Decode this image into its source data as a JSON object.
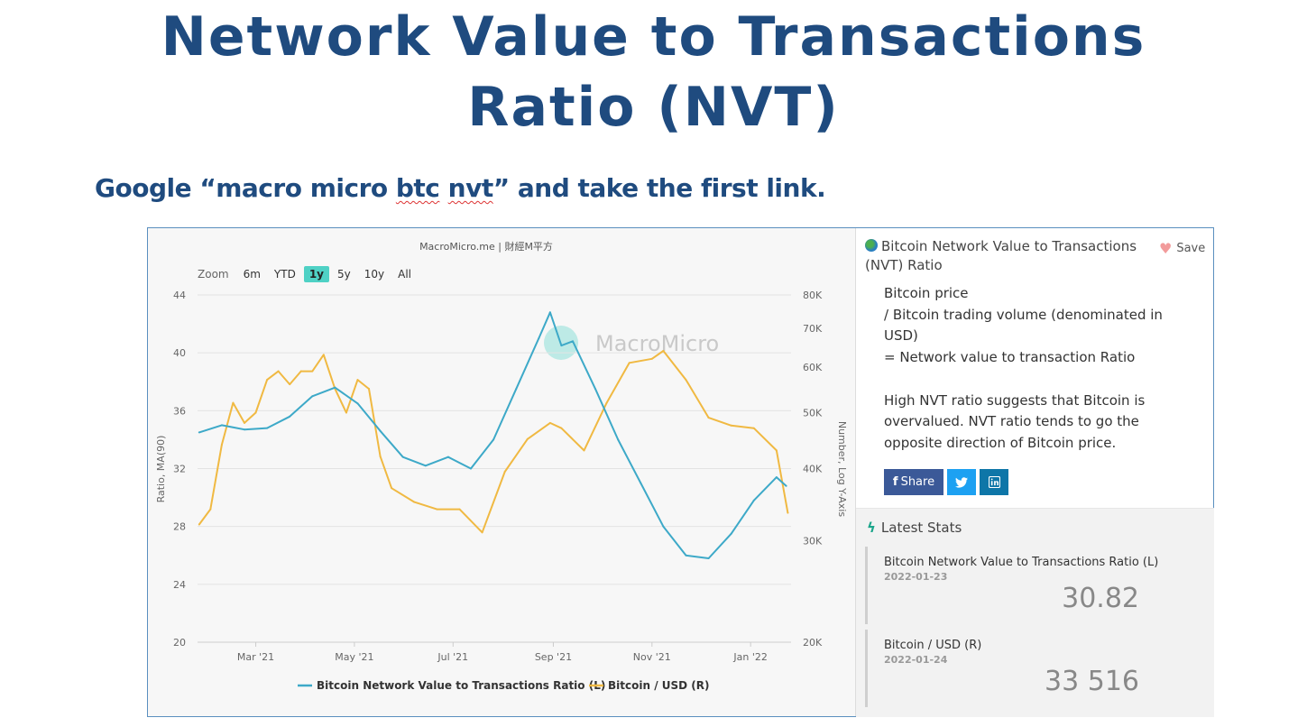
{
  "slide": {
    "title_line1": "Network Value to Transactions",
    "title_line2": "Ratio (NVT)",
    "instruction_prefix": "Google “macro micro ",
    "instruction_btc": "btc",
    "instruction_nvt": "nvt",
    "instruction_suffix": "” and take the first link."
  },
  "widget": {
    "credit": "MacroMicro.me | 財經M平方",
    "watermark": "MacroMicro",
    "zoom": {
      "label": "Zoom",
      "options": [
        "6m",
        "YTD",
        "1y",
        "5y",
        "10y",
        "All"
      ],
      "selected": "1y"
    },
    "panel": {
      "title": "Bitcoin Network Value to Transactions (NVT) Ratio",
      "title_icon": "globe-icon",
      "save_label": "Save",
      "description": [
        "Bitcoin price",
        "/ Bitcoin trading volume (denominated in USD)",
        "= Network value to transaction Ratio",
        "",
        "High NVT ratio suggests that Bitcoin is overvalued. NVT ratio tends to go the opposite direction of Bitcoin price."
      ],
      "share": {
        "facebook": "Share",
        "twitter_icon": "twitter-icon",
        "linkedin_icon": "linkedin-icon"
      },
      "stats_title": "Latest Stats",
      "stats": [
        {
          "name": "Bitcoin Network Value to Transactions Ratio (L)",
          "date": "2022-01-23",
          "value": "30.82"
        },
        {
          "name": "Bitcoin / USD (R)",
          "date": "2022-01-24",
          "value": "33 516"
        }
      ]
    }
  },
  "chart_data": {
    "type": "line",
    "title": "",
    "ylabel_left": "Ratio, MA(90)",
    "ylabel_right": "Number, Log Y-Axis",
    "left_ticks": [
      "44",
      "40",
      "36",
      "32",
      "28",
      "24",
      "20"
    ],
    "left_ylim": [
      20,
      44
    ],
    "right_ticks": [
      "80K",
      "70K",
      "60K",
      "50K",
      "40K",
      "30K",
      "20K"
    ],
    "right_ylim": [
      20000,
      80000
    ],
    "right_scale": "log",
    "x_ticks": [
      "Mar '21",
      "May '21",
      "Jul '21",
      "Sep '21",
      "Nov '21",
      "Jan '22"
    ],
    "legend_position": "bottom",
    "grid": true,
    "colors": {
      "nvt": "#3da9c8",
      "btc": "#f0b942"
    },
    "series": [
      {
        "name": "Bitcoin Network Value to Transactions Ratio (L)",
        "axis": "left",
        "x": [
          "2021-01-25",
          "2021-02-08",
          "2021-02-22",
          "2021-03-08",
          "2021-03-22",
          "2021-04-05",
          "2021-04-19",
          "2021-05-03",
          "2021-05-17",
          "2021-05-31",
          "2021-06-14",
          "2021-06-28",
          "2021-07-12",
          "2021-07-26",
          "2021-08-09",
          "2021-08-23",
          "2021-08-30",
          "2021-09-06",
          "2021-09-13",
          "2021-09-27",
          "2021-10-11",
          "2021-10-25",
          "2021-11-08",
          "2021-11-22",
          "2021-12-06",
          "2021-12-20",
          "2022-01-03",
          "2022-01-17",
          "2022-01-23"
        ],
        "values": [
          34.5,
          35.0,
          34.7,
          34.8,
          35.6,
          37.0,
          37.6,
          36.5,
          34.6,
          32.8,
          32.2,
          32.8,
          32.0,
          34.0,
          37.5,
          41.0,
          42.8,
          40.5,
          40.8,
          37.5,
          34.0,
          31.0,
          28.0,
          26.0,
          25.8,
          27.5,
          29.8,
          31.4,
          30.8
        ]
      },
      {
        "name": "Bitcoin / USD (R)",
        "axis": "right",
        "x": [
          "2021-01-25",
          "2021-02-01",
          "2021-02-08",
          "2021-02-15",
          "2021-02-22",
          "2021-03-01",
          "2021-03-08",
          "2021-03-15",
          "2021-03-22",
          "2021-03-29",
          "2021-04-05",
          "2021-04-12",
          "2021-04-19",
          "2021-04-26",
          "2021-05-03",
          "2021-05-10",
          "2021-05-17",
          "2021-05-24",
          "2021-06-07",
          "2021-06-21",
          "2021-07-05",
          "2021-07-19",
          "2021-08-02",
          "2021-08-16",
          "2021-08-30",
          "2021-09-06",
          "2021-09-20",
          "2021-10-04",
          "2021-10-18",
          "2021-11-01",
          "2021-11-08",
          "2021-11-22",
          "2021-12-06",
          "2021-12-20",
          "2022-01-03",
          "2022-01-17",
          "2022-01-24"
        ],
        "values": [
          32000,
          34000,
          44000,
          52000,
          48000,
          50000,
          57000,
          59000,
          56000,
          59000,
          59000,
          63000,
          55000,
          50000,
          57000,
          55000,
          42000,
          37000,
          35000,
          34000,
          34000,
          31000,
          39500,
          45000,
          48000,
          47000,
          43000,
          52000,
          61000,
          62000,
          64000,
          57000,
          49000,
          47500,
          47000,
          43000,
          33516
        ]
      }
    ]
  }
}
